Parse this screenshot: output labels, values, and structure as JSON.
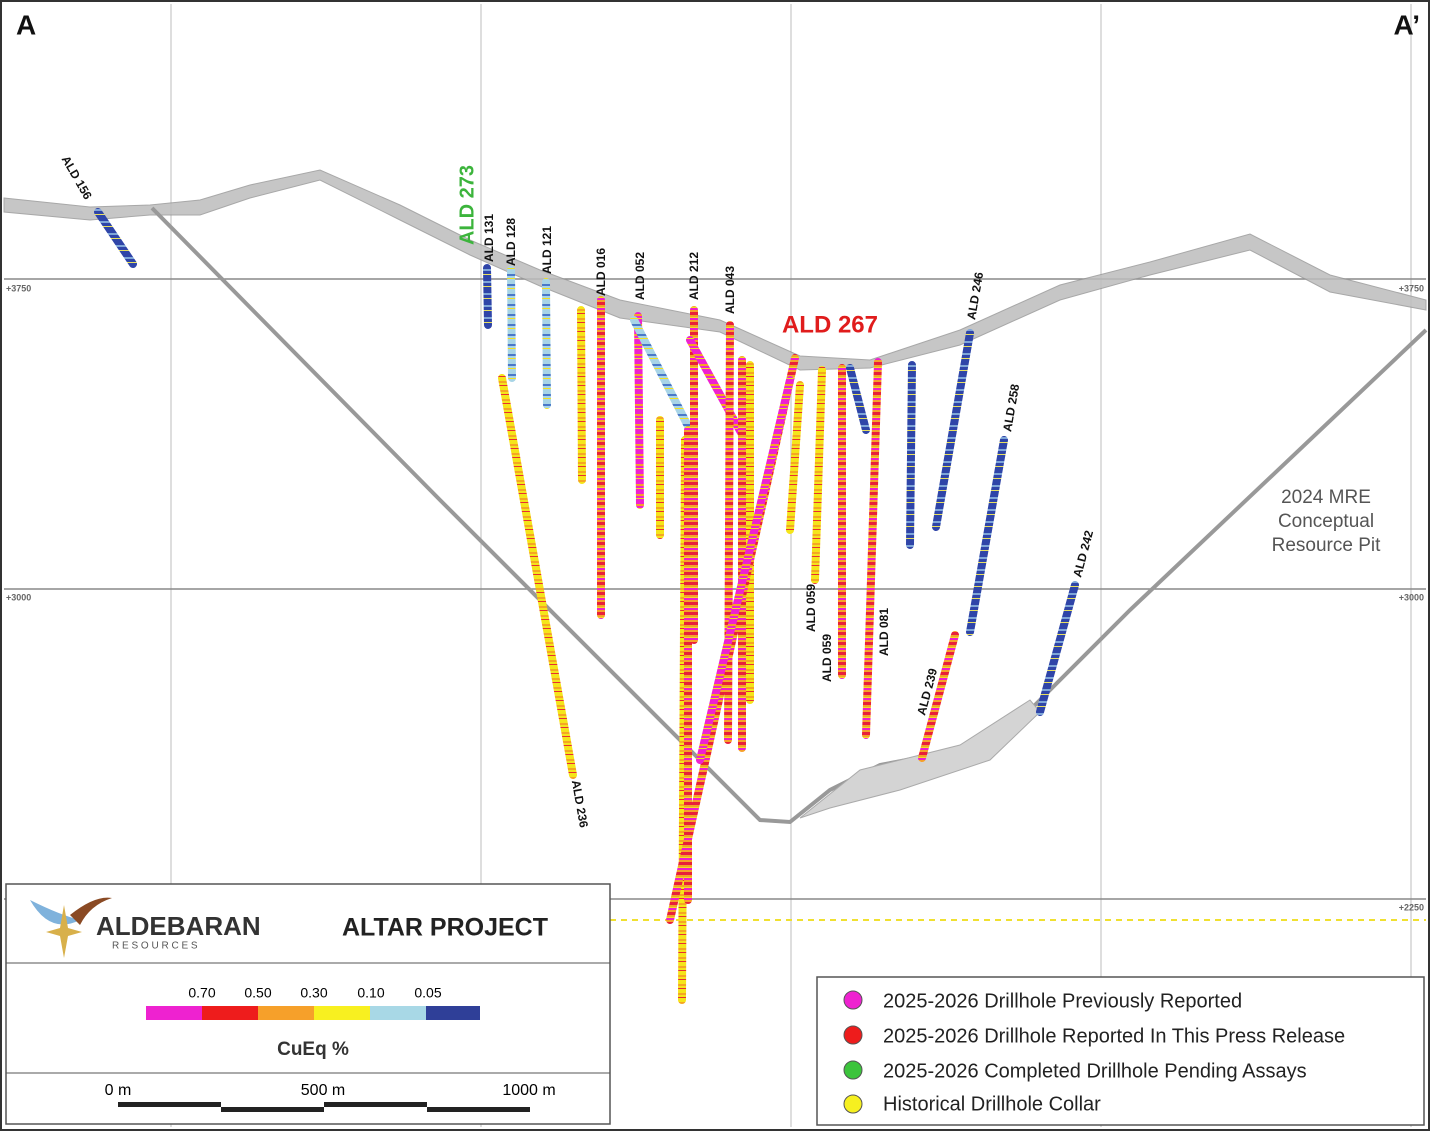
{
  "section": {
    "start": "A",
    "end": "A’"
  },
  "elevations": [
    "+3750",
    "+3000",
    "+2250"
  ],
  "pit_label": [
    "2024 MRE",
    "Conceptual",
    "Resource Pit"
  ],
  "holes": [
    {
      "label": "ALD 156"
    },
    {
      "label": "ALD 273"
    },
    {
      "label": "ALD 131"
    },
    {
      "label": "ALD 128"
    },
    {
      "label": "ALD 121"
    },
    {
      "label": "ALD 016"
    },
    {
      "label": "ALD 052"
    },
    {
      "label": "ALD 212"
    },
    {
      "label": "ALD 043"
    },
    {
      "label": "ALD 267"
    },
    {
      "label": "ALD 246"
    },
    {
      "label": "ALD 258"
    },
    {
      "label": "ALD 059"
    },
    {
      "label": "ALD 059"
    },
    {
      "label": "ALD 081"
    },
    {
      "label": "ALD 239"
    },
    {
      "label": "ALD 242"
    },
    {
      "label": "ALD 236"
    }
  ],
  "title_block": {
    "company": "ALDEBARAN",
    "company_sub": "R E S O U R C E S",
    "project": "ALTAR PROJECT"
  },
  "color_scale": {
    "title": "CuEq %",
    "labels": [
      "0.70",
      "0.50",
      "0.30",
      "0.10",
      "0.05"
    ]
  },
  "scale_bar": [
    "0 m",
    "500 m",
    "1000 m"
  ],
  "legend": [
    "2025-2026 Drillhole Previously Reported",
    "2025-2026 Drillhole Reported In This Press Release",
    "2025-2026 Completed Drillhole Pending Assays",
    "Historical Drillhole Collar"
  ]
}
